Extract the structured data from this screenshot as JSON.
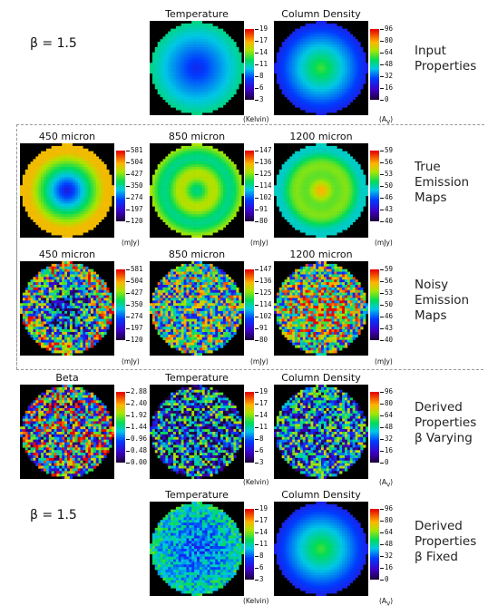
{
  "beta_top": "β = 1.5",
  "beta_bottom": "β = 1.5",
  "units": {
    "kelvin": "(Kelvin)",
    "mjy": "(mJy)",
    "av": "(A",
    "av_sub": "V",
    "av_close": ")"
  },
  "titles": {
    "temperature": "Temperature",
    "column_density": "Column Density",
    "m450": "450 micron",
    "m850": "850 micron",
    "m1200": "1200 micron",
    "beta": "Beta"
  },
  "row_labels": {
    "input": [
      "Input",
      "Properties"
    ],
    "true": [
      "True",
      "Emission",
      "Maps"
    ],
    "noisy": [
      "Noisy",
      "Emission",
      "Maps"
    ],
    "varying": [
      "Derived",
      "Properties",
      "β Varying"
    ],
    "fixed": [
      "Derived",
      "Properties",
      "β Fixed"
    ]
  },
  "colorbars": {
    "temp": [
      "19",
      "17",
      "14",
      "11",
      "8",
      "6",
      "3"
    ],
    "coldens": [
      "96",
      "80",
      "64",
      "48",
      "32",
      "16",
      "0"
    ],
    "m450": [
      "581",
      "504",
      "427",
      "350",
      "274",
      "197",
      "120"
    ],
    "m850": [
      "147",
      "136",
      "125",
      "114",
      "102",
      "91",
      "80"
    ],
    "m1200": [
      "59",
      "56",
      "53",
      "50",
      "46",
      "43",
      "40"
    ],
    "beta": [
      "2.88",
      "2.40",
      "1.92",
      "1.44",
      "0.96",
      "0.48",
      "0.00"
    ],
    "coldens_derived": [
      "96",
      "80",
      "64",
      "48",
      "32",
      "16",
      "0"
    ]
  },
  "colors": {
    "accent": "#ff0000",
    "dash": "#9a9a9a"
  }
}
